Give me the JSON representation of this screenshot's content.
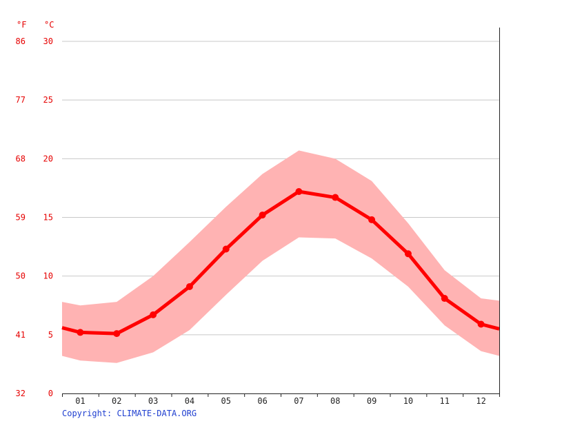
{
  "copyright": "Copyright: CLIMATE-DATA.ORG",
  "chart_data": {
    "type": "line",
    "title": "",
    "xlabel": "",
    "ylabel": "",
    "units": {
      "left": "°F",
      "right": "°C"
    },
    "categories": [
      "01",
      "02",
      "03",
      "04",
      "05",
      "06",
      "07",
      "08",
      "09",
      "10",
      "11",
      "12"
    ],
    "series": [
      {
        "values": [
          5.2,
          5.1,
          6.7,
          9.1,
          12.3,
          15.2,
          17.2,
          16.7,
          14.8,
          11.9,
          8.1,
          5.9
        ]
      }
    ],
    "range_band": {
      "upper": [
        7.5,
        7.8,
        10.0,
        12.9,
        15.9,
        18.7,
        20.7,
        20.0,
        18.1,
        14.5,
        10.5,
        8.1
      ],
      "lower": [
        2.8,
        2.6,
        3.5,
        5.4,
        8.4,
        11.3,
        13.3,
        13.2,
        11.5,
        9.1,
        5.8,
        3.6
      ]
    },
    "edge_values": {
      "upper": [
        7.8,
        7.9
      ],
      "mean": [
        5.6,
        5.5
      ],
      "lower": [
        3.2,
        3.2
      ]
    },
    "yticks_c": [
      "0",
      "5",
      "10",
      "15",
      "20",
      "25",
      "30"
    ],
    "yticks_f": [
      "32",
      "41",
      "50",
      "59",
      "68",
      "77",
      "86"
    ],
    "ylim": [
      0,
      30
    ],
    "grid": true,
    "colors": {
      "line": "#ff0000",
      "band": "#ffb3b3",
      "grid": "#c8c8c8",
      "axis_text": "#e60000"
    }
  }
}
